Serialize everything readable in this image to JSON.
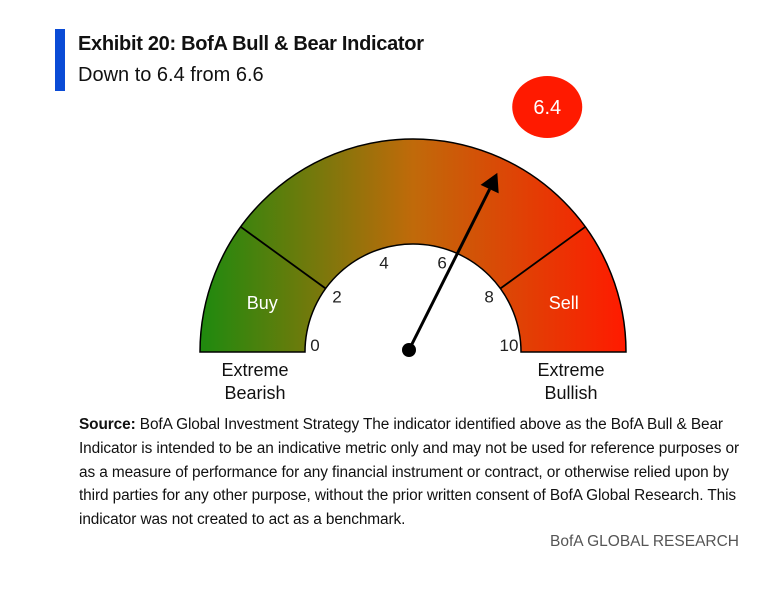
{
  "header": {
    "title": "Exhibit 20: BofA Bull & Bear Indicator",
    "subtitle": "Down to 6.4 from 6.6"
  },
  "chart_data": {
    "type": "gauge",
    "title": "Exhibit 20: BofA Bull & Bear Indicator",
    "subtitle": "Down to 6.4 from 6.6",
    "value": 6.4,
    "value_label": "6.4",
    "range": [
      0,
      10
    ],
    "ticks": [
      {
        "value": 0,
        "label": "0"
      },
      {
        "value": 2,
        "label": "2"
      },
      {
        "value": 4,
        "label": "4"
      },
      {
        "value": 6,
        "label": "6"
      },
      {
        "value": 8,
        "label": "8"
      },
      {
        "value": 10,
        "label": "10"
      }
    ],
    "zones": [
      {
        "label": "Buy",
        "from": 0,
        "to": 2
      },
      {
        "label": "Sell",
        "from": 8,
        "to": 10
      }
    ],
    "end_labels": {
      "left": [
        "Extreme",
        "Bearish"
      ],
      "right": [
        "Extreme",
        "Bullish"
      ]
    },
    "colors": {
      "start": "#1e8a0e",
      "mid": "#c06a0a",
      "end": "#ff1a00",
      "badge": "#ff1a00",
      "needle": "#000000"
    }
  },
  "footer": {
    "source_label": "Source:",
    "source_text": " BofA Global Investment Strategy The indicator identified above as the BofA Bull & Bear Indicator is intended to be an indicative metric only and may not be used for reference purposes or as a measure of performance for any financial instrument or contract, or otherwise relied upon by third parties for any other purpose, without the prior written consent of BofA Global Research. This indicator was not created to act as a benchmark.",
    "branding": "BofA GLOBAL RESEARCH"
  }
}
